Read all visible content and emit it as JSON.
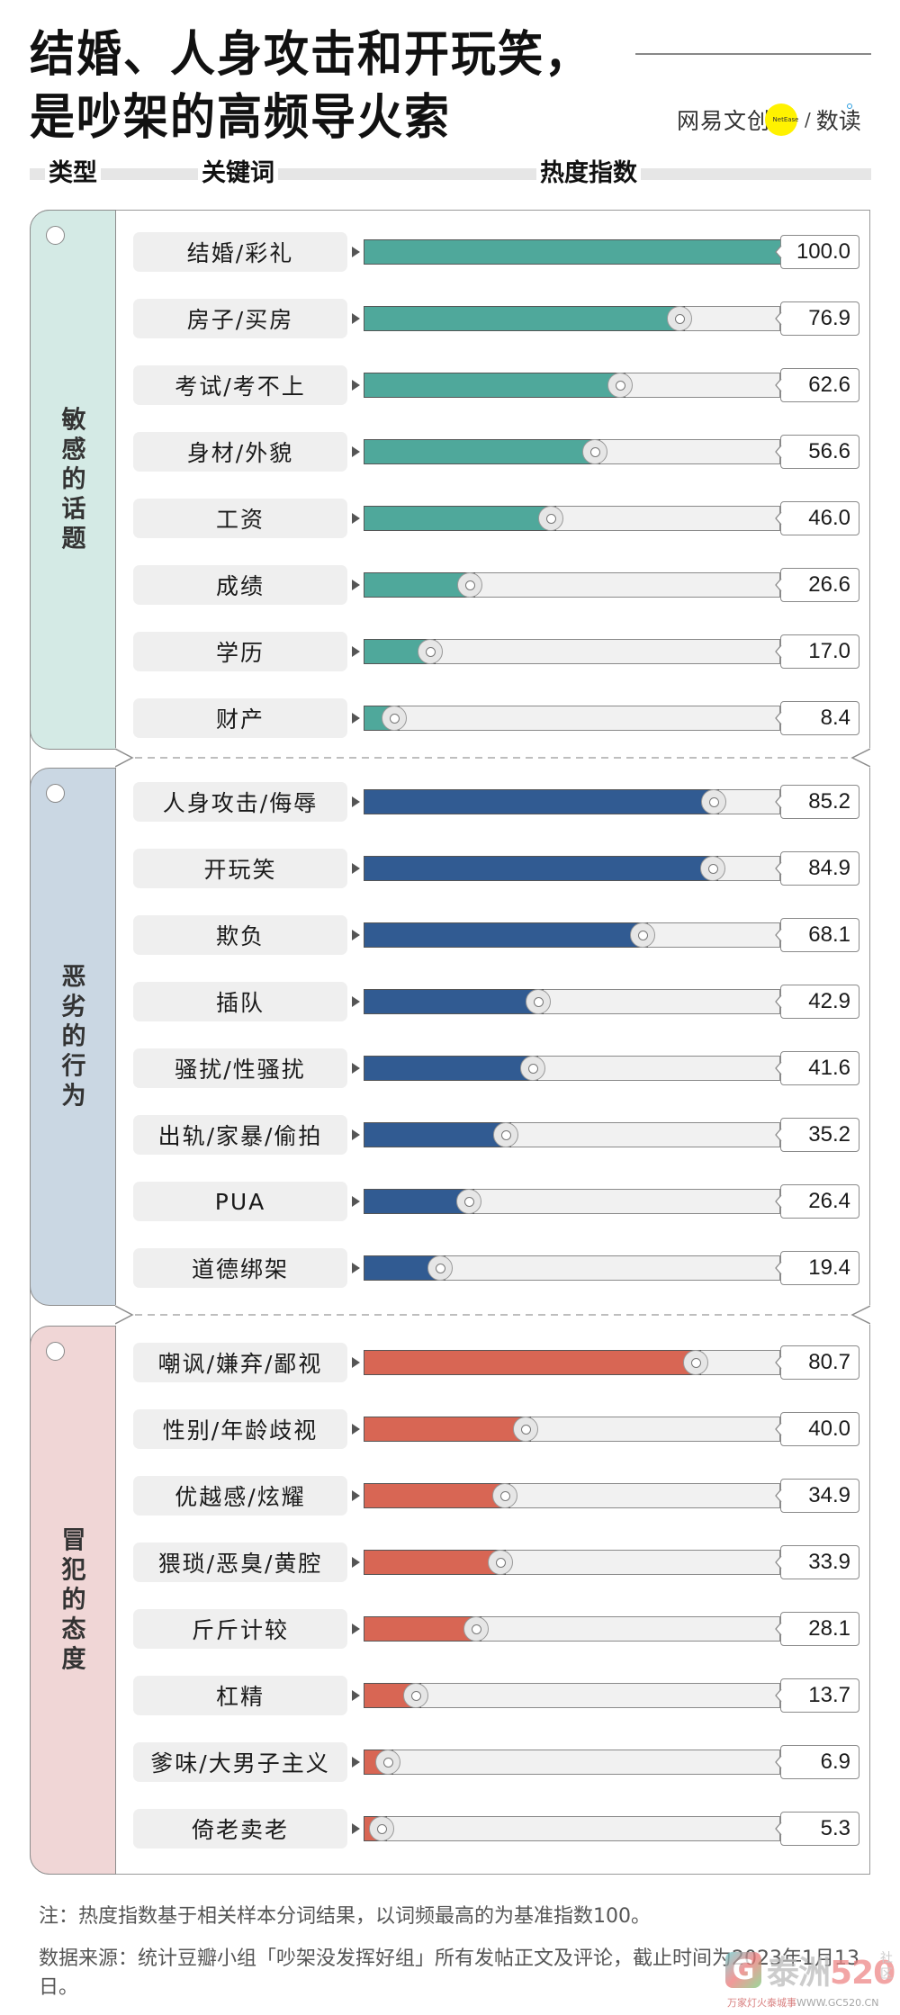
{
  "header": {
    "title_line1": "结婚、人身攻击和开玩笑，",
    "title_line2": "是吵架的高频导火索",
    "logo": {
      "name": "网易文创",
      "badge": "NetEase",
      "slash": "/",
      "sub": "数读"
    }
  },
  "columns": {
    "type": "类型",
    "keyword": "关键词",
    "heat": "热度指数"
  },
  "colors": {
    "sensitive_topics": "#4fa89b",
    "bad_behavior": "#315b92",
    "offensive_attitude": "#d86654",
    "tab_sensitive_topics": "#d4eae5",
    "tab_bad_behavior": "#cad7e3",
    "tab_offensive_attitude": "#f0d6d6",
    "track": "#f1f1f1"
  },
  "groups": [
    {
      "label": "敏感的话题",
      "chars": [
        "敏",
        "感",
        "的",
        "话",
        "题"
      ],
      "items": [
        {
          "keyword": "结婚/彩礼",
          "value": "100.0"
        },
        {
          "keyword": "房子/买房",
          "value": "76.9"
        },
        {
          "keyword": "考试/考不上",
          "value": "62.6"
        },
        {
          "keyword": "身材/外貌",
          "value": "56.6"
        },
        {
          "keyword": "工资",
          "value": "46.0"
        },
        {
          "keyword": "成绩",
          "value": "26.6"
        },
        {
          "keyword": "学历",
          "value": "17.0"
        },
        {
          "keyword": "财产",
          "value": "8.4"
        }
      ]
    },
    {
      "label": "恶劣的行为",
      "chars": [
        "恶",
        "劣",
        "的",
        "行",
        "为"
      ],
      "items": [
        {
          "keyword": "人身攻击/侮辱",
          "value": "85.2"
        },
        {
          "keyword": "开玩笑",
          "value": "84.9"
        },
        {
          "keyword": "欺负",
          "value": "68.1"
        },
        {
          "keyword": "插队",
          "value": "42.9"
        },
        {
          "keyword": "骚扰/性骚扰",
          "value": "41.6"
        },
        {
          "keyword": "出轨/家暴/偷拍",
          "value": "35.2"
        },
        {
          "keyword": "PUA",
          "value": "26.4"
        },
        {
          "keyword": "道德绑架",
          "value": "19.4"
        }
      ]
    },
    {
      "label": "冒犯的态度",
      "chars": [
        "冒",
        "犯",
        "的",
        "态",
        "度"
      ],
      "items": [
        {
          "keyword": "嘲讽/嫌弃/鄙视",
          "value": "80.7"
        },
        {
          "keyword": "性别/年龄歧视",
          "value": "40.0"
        },
        {
          "keyword": "优越感/炫耀",
          "value": "34.9"
        },
        {
          "keyword": "猥琐/恶臭/黄腔",
          "value": "33.9"
        },
        {
          "keyword": "斤斤计较",
          "value": "28.1"
        },
        {
          "keyword": "杠精",
          "value": "13.7"
        },
        {
          "keyword": "爹味/大男子主义",
          "value": "6.9"
        },
        {
          "keyword": "倚老卖老",
          "value": "5.3"
        }
      ]
    }
  ],
  "notes": {
    "note": "注：热度指数基于相关样本分词结果，以词频最高的为基准指数100。",
    "source": "数据来源：统计豆瓣小组「吵架没发挥好组」所有发帖正文及评论，截止时间为2023年1月13日。"
  },
  "watermark": {
    "glyph": "G",
    "text": "泰洲",
    "num": "520",
    "side": "社区",
    "url_cn": "万家灯火泰城事",
    "url": "WWW.GC520.CN"
  },
  "chart_data": {
    "type": "bar",
    "orientation": "horizontal",
    "title": "结婚、人身攻击和开玩笑，是吵架的高频导火索",
    "xlabel": "热度指数",
    "ylabel": "关键词",
    "xlim": [
      0,
      100
    ],
    "grid": false,
    "legend": "none (groups labelled by side tabs)",
    "series": [
      {
        "name": "敏感的话题",
        "categories": [
          "结婚/彩礼",
          "房子/买房",
          "考试/考不上",
          "身材/外貌",
          "工资",
          "成绩",
          "学历",
          "财产"
        ],
        "values": [
          100.0,
          76.9,
          62.6,
          56.6,
          46.0,
          26.6,
          17.0,
          8.4
        ]
      },
      {
        "name": "恶劣的行为",
        "categories": [
          "人身攻击/侮辱",
          "开玩笑",
          "欺负",
          "插队",
          "骚扰/性骚扰",
          "出轨/家暴/偷拍",
          "PUA",
          "道德绑架"
        ],
        "values": [
          85.2,
          84.9,
          68.1,
          42.9,
          41.6,
          35.2,
          26.4,
          19.4
        ]
      },
      {
        "name": "冒犯的态度",
        "categories": [
          "嘲讽/嫌弃/鄙视",
          "性别/年龄歧视",
          "优越感/炫耀",
          "猥琐/恶臭/黄腔",
          "斤斤计较",
          "杠精",
          "爹味/大男子主义",
          "倚老卖老"
        ],
        "values": [
          80.7,
          40.0,
          34.9,
          33.9,
          28.1,
          13.7,
          6.9,
          5.3
        ]
      }
    ],
    "annotations": [
      "注：热度指数基于相关样本分词结果，以词频最高的为基准指数100。"
    ]
  }
}
